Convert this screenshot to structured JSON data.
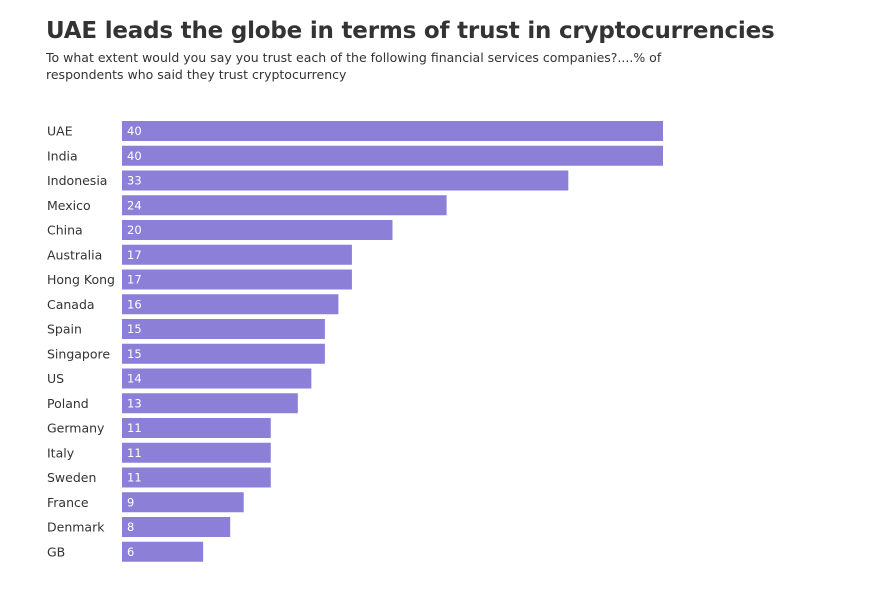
{
  "title": "UAE leads the globe in terms of trust in cryptocurrencies",
  "subtitle": "To what extent would you say you trust each of the following financial services companies?....% of respondents who said they trust cryptocurrency",
  "colors": {
    "bar": "#8b7fd8",
    "text": "#333333",
    "value_text": "#ffffff"
  },
  "chart_data": {
    "type": "bar",
    "orientation": "horizontal",
    "title": "UAE leads the globe in terms of trust in cryptocurrencies",
    "subtitle": "To what extent would you say you trust each of the following financial services companies?....% of respondents who said they trust cryptocurrency",
    "xlabel": "",
    "ylabel": "",
    "categories": [
      "UAE",
      "India",
      "Indonesia",
      "Mexico",
      "China",
      "Australia",
      "Hong Kong",
      "Canada",
      "Spain",
      "Singapore",
      "US",
      "Poland",
      "Germany",
      "Italy",
      "Sweden",
      "France",
      "Denmark",
      "GB"
    ],
    "values": [
      40,
      40,
      33,
      24,
      20,
      17,
      17,
      16,
      15,
      15,
      14,
      13,
      11,
      11,
      11,
      9,
      8,
      6
    ],
    "xlim": [
      0,
      40
    ],
    "grid": false,
    "legend": "none",
    "data_labels": "inside-left"
  }
}
